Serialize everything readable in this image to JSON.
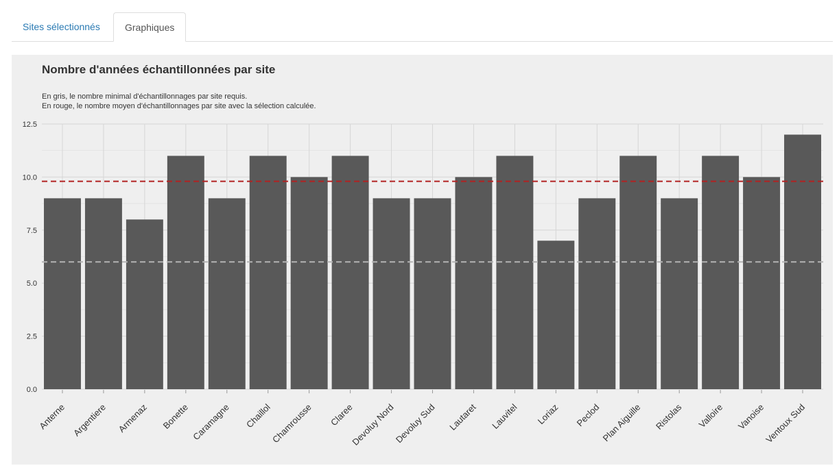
{
  "tabs": [
    {
      "label": "Sites sélectionnés",
      "active": false
    },
    {
      "label": "Graphiques",
      "active": true
    }
  ],
  "chart_data": {
    "type": "bar",
    "title": "Nombre d'années échantillonnées par site",
    "subtitle": [
      "En gris, le nombre minimal d'échantillonnages par site requis.",
      "En rouge, le nombre moyen d'échantillonnages par site avec la sélection calculée."
    ],
    "xlabel": "",
    "ylabel": "",
    "ylim": [
      0,
      12.5
    ],
    "yticks": [
      "0.0",
      "2.5",
      "5.0",
      "7.5",
      "10.0",
      "12.5"
    ],
    "categories": [
      "Anterne",
      "Argentiere",
      "Armenaz",
      "Bonette",
      "Caramagne",
      "Chaillol",
      "Chamrousse",
      "Claree",
      "Devoluy Nord",
      "Devoluy Sud",
      "Lautaret",
      "Lauvitel",
      "Loriaz",
      "Peclod",
      "Plan Aiguille",
      "Ristolas",
      "Valloire",
      "Vanoise",
      "Ventoux Sud"
    ],
    "values": [
      9,
      9,
      8,
      11,
      9,
      11,
      10,
      11,
      9,
      9,
      10,
      11,
      7,
      9,
      11,
      9,
      11,
      10,
      12
    ],
    "reference_lines": [
      {
        "value": 6,
        "color": "#b3b3b3",
        "style": "dashed"
      },
      {
        "value": 9.8,
        "color": "#b22222",
        "style": "dashed"
      }
    ],
    "bar_color": "#595959",
    "grid": true
  }
}
